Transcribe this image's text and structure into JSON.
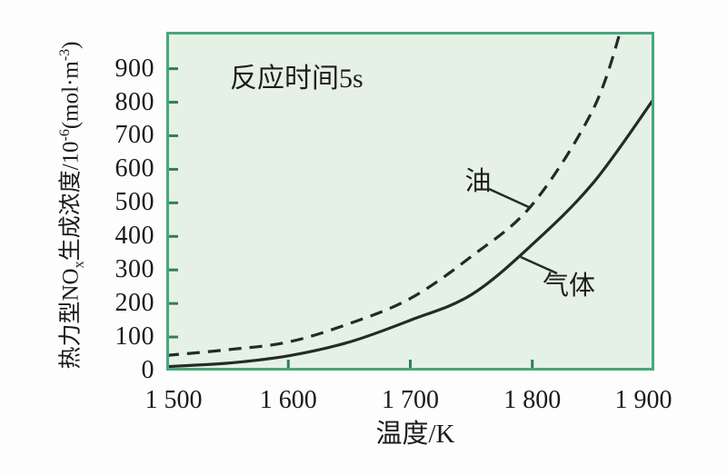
{
  "figure": {
    "background": "#fdfdfd",
    "plot_background": "#e6f1e5",
    "border_color": "#46a87a",
    "tick_color": "#2f7f58",
    "curve_color": "#232b24",
    "text_color": "#1a1a1a",
    "y_label_parts": {
      "p1": "热力型NO",
      "sub1": "x",
      "p2": "生成浓度/10",
      "sup1": "-6",
      "p3": "(mol·m",
      "sup2": "-3",
      "p4": ")"
    }
  },
  "chart_data": {
    "type": "line",
    "title": "",
    "annotation": "反应时间5s",
    "xlabel": "温度/K",
    "ylabel": "热力型NOx生成浓度/10⁻⁶(mol·m⁻³)",
    "xlim": [
      1500,
      1900
    ],
    "ylim": [
      0,
      1010
    ],
    "x_ticks": [
      1500,
      1600,
      1700,
      1800,
      1900
    ],
    "x_tick_labels": [
      "1 500",
      "1 600",
      "1 700",
      "1 800",
      "1 900"
    ],
    "y_ticks": [
      0,
      100,
      200,
      300,
      400,
      500,
      600,
      700,
      800,
      900
    ],
    "grid": false,
    "legend_position": "inline-labels",
    "series": [
      {
        "name": "油",
        "style": "dashed",
        "x": [
          1500,
          1550,
          1600,
          1650,
          1700,
          1750,
          1800,
          1850,
          1875
        ],
        "y": [
          45,
          62,
          85,
          140,
          215,
          340,
          495,
          780,
          1045
        ]
      },
      {
        "name": "气体",
        "style": "solid",
        "x": [
          1500,
          1550,
          1600,
          1650,
          1700,
          1750,
          1800,
          1850,
          1900
        ],
        "y": [
          12,
          22,
          44,
          85,
          150,
          226,
          376,
          560,
          812
        ]
      }
    ]
  }
}
